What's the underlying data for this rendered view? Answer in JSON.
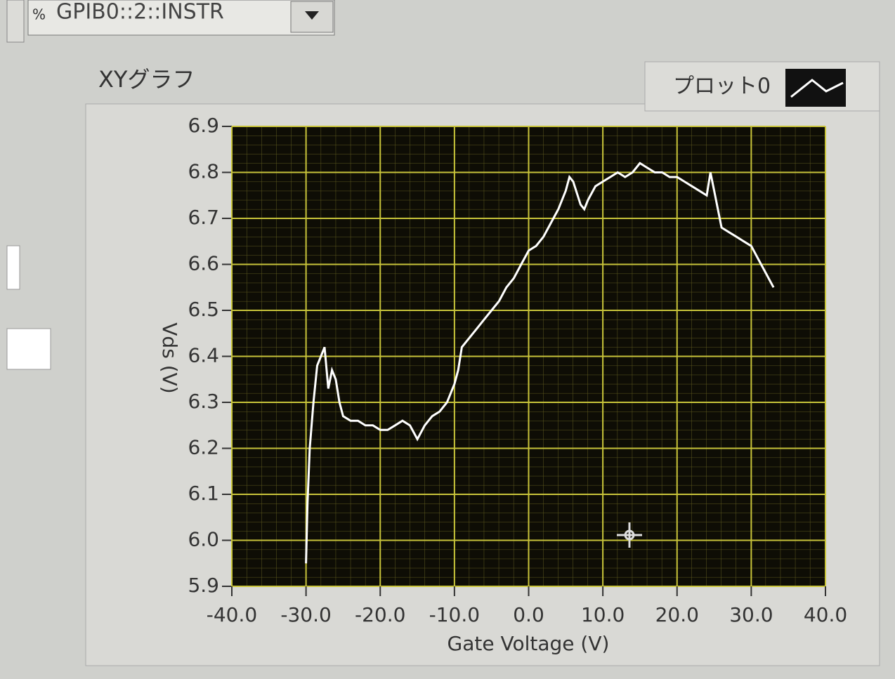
{
  "resource": {
    "prefix": "%",
    "value": "GPIB0::2::INSTR"
  },
  "chart_data": {
    "type": "line",
    "title": "XYグラフ",
    "legend_label": "プロット0",
    "x_label": "Gate Voltage (V)",
    "y_label": "Vds (V)",
    "xlim": [
      -40,
      40
    ],
    "ylim": [
      5.9,
      6.9
    ],
    "xticks": [
      {
        "value": -40,
        "label": "-40.0"
      },
      {
        "value": -30,
        "label": "-30.0"
      },
      {
        "value": -20,
        "label": "-20.0"
      },
      {
        "value": -10,
        "label": "-10.0"
      },
      {
        "value": 0,
        "label": "0.0"
      },
      {
        "value": 10,
        "label": "10.0"
      },
      {
        "value": 20,
        "label": "20.0"
      },
      {
        "value": 30,
        "label": "30.0"
      },
      {
        "value": 40,
        "label": "40.0"
      }
    ],
    "yticks": [
      5.9,
      {
        "value": 6,
        "label": "6.0"
      },
      6.1,
      6.2,
      6.3,
      6.4,
      6.5,
      6.6,
      6.7,
      6.8,
      6.9
    ],
    "grid": true,
    "color": "#ffffff",
    "x": [
      -30,
      -29.8,
      -29.5,
      -29,
      -28.5,
      -28,
      -27.5,
      -27,
      -26.5,
      -26,
      -25.5,
      -25,
      -24,
      -23,
      -22,
      -21,
      -20,
      -19,
      -18,
      -17,
      -16,
      -15,
      -14,
      -13,
      -12,
      -11,
      -10,
      -9.5,
      -9,
      -8,
      -7,
      -6,
      -5,
      -4,
      -3,
      -2,
      -1,
      0,
      1,
      2,
      3,
      4,
      5,
      5.5,
      6,
      7,
      7.5,
      8,
      9,
      10,
      11,
      12,
      13,
      14,
      15,
      16,
      17,
      18,
      19,
      20,
      21,
      22,
      23,
      24,
      24.5,
      25,
      26,
      27,
      28,
      29,
      30,
      31,
      32,
      33
    ],
    "values": [
      5.95,
      6.08,
      6.2,
      6.3,
      6.38,
      6.4,
      6.42,
      6.33,
      6.37,
      6.35,
      6.3,
      6.27,
      6.26,
      6.26,
      6.25,
      6.25,
      6.24,
      6.24,
      6.25,
      6.26,
      6.25,
      6.22,
      6.25,
      6.27,
      6.28,
      6.3,
      6.34,
      6.37,
      6.42,
      6.44,
      6.46,
      6.48,
      6.5,
      6.52,
      6.55,
      6.57,
      6.6,
      6.63,
      6.64,
      6.66,
      6.69,
      6.72,
      6.76,
      6.79,
      6.78,
      6.73,
      6.72,
      6.74,
      6.77,
      6.78,
      6.79,
      6.8,
      6.79,
      6.8,
      6.82,
      6.81,
      6.8,
      6.8,
      6.79,
      6.79,
      6.78,
      6.77,
      6.76,
      6.75,
      6.8,
      6.76,
      6.68,
      6.67,
      6.66,
      6.65,
      6.64,
      6.61,
      6.58,
      6.55
    ]
  }
}
